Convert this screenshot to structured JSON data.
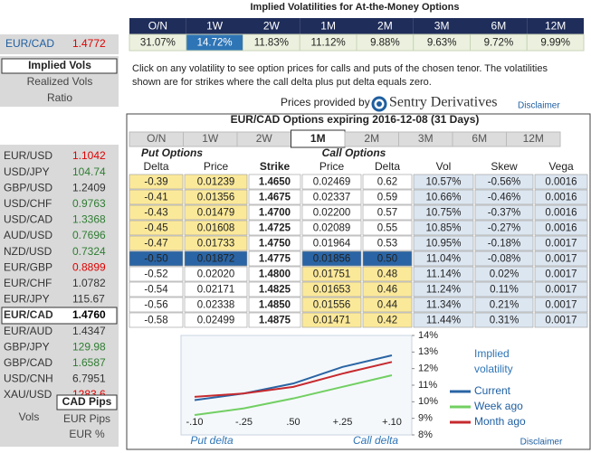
{
  "header": {
    "title": "Implied Volatilities for At-the-Money Options",
    "tenors": [
      "O/N",
      "1W",
      "2W",
      "1M",
      "2M",
      "3M",
      "6M",
      "12M"
    ],
    "vols": [
      "31.07%",
      "14.72%",
      "11.83%",
      "11.12%",
      "9.88%",
      "9.63%",
      "9.72%",
      "9.99%"
    ]
  },
  "left": {
    "pair": "EUR/CAD",
    "rate": "1.4772",
    "menu": [
      "Implied Vols",
      "Realized Vols",
      "Ratio"
    ],
    "quotes": [
      {
        "pair": "EUR/USD",
        "rate": "1.1042",
        "color": "#e00000"
      },
      {
        "pair": "USD/JPY",
        "rate": "104.74",
        "color": "#2e7d32"
      },
      {
        "pair": "GBP/USD",
        "rate": "1.2409",
        "color": "#333333"
      },
      {
        "pair": "USD/CHF",
        "rate": "0.9763",
        "color": "#2e7d32"
      },
      {
        "pair": "USD/CAD",
        "rate": "1.3368",
        "color": "#2e7d32"
      },
      {
        "pair": "AUD/USD",
        "rate": "0.7696",
        "color": "#2e7d32"
      },
      {
        "pair": "NZD/USD",
        "rate": "0.7324",
        "color": "#2e7d32"
      },
      {
        "pair": "EUR/GBP",
        "rate": "0.8899",
        "color": "#e00000"
      },
      {
        "pair": "EUR/CHF",
        "rate": "1.0782",
        "color": "#333333"
      },
      {
        "pair": "EUR/JPY",
        "rate": "115.67",
        "color": "#333333"
      },
      {
        "pair": "EUR/CAD",
        "rate": "1.4760",
        "color": "#000000"
      },
      {
        "pair": "EUR/AUD",
        "rate": "1.4347",
        "color": "#333333"
      },
      {
        "pair": "GBP/JPY",
        "rate": "129.98",
        "color": "#2e7d32"
      },
      {
        "pair": "GBP/CAD",
        "rate": "1.6587",
        "color": "#2e7d32"
      },
      {
        "pair": "USD/CNH",
        "rate": "6.7951",
        "color": "#333333"
      },
      {
        "pair": "XAU/USD",
        "rate": "1283.6",
        "color": "#e00000"
      }
    ],
    "cad_pips": "CAD Pips",
    "vols": "Vols",
    "eur_pips": "EUR Pips",
    "eur_pct": "EUR %"
  },
  "note": [
    "Click on any volatility to see option prices for calls and puts of the chosen tenor. The volatilities",
    "shown are for strikes where the call delta plus put delta equals zero."
  ],
  "provider": "Prices provided by",
  "brand": "Sentry Derivatives",
  "disclaimer": "Disclaimer",
  "options": {
    "title": "EUR/CAD Options expiring 2016-12-08 (31 Days)",
    "tabs": [
      "O/N",
      "1W",
      "2W",
      "1M",
      "2M",
      "3M",
      "6M",
      "12M"
    ],
    "put_group": "Put Options",
    "call_group": "Call Options",
    "columns": [
      "Delta",
      "Price",
      "Strike",
      "Price",
      "Delta",
      "Vol",
      "Skew",
      "Vega"
    ],
    "rows": [
      [
        "-0.39",
        "0.01239",
        "1.4650",
        "0.02469",
        "0.62",
        "10.57%",
        "-0.56%",
        "0.0016"
      ],
      [
        "-0.41",
        "0.01356",
        "1.4675",
        "0.02337",
        "0.59",
        "10.66%",
        "-0.46%",
        "0.0016"
      ],
      [
        "-0.43",
        "0.01479",
        "1.4700",
        "0.02200",
        "0.57",
        "10.75%",
        "-0.37%",
        "0.0016"
      ],
      [
        "-0.45",
        "0.01608",
        "1.4725",
        "0.02089",
        "0.55",
        "10.85%",
        "-0.27%",
        "0.0016"
      ],
      [
        "-0.47",
        "0.01733",
        "1.4750",
        "0.01964",
        "0.53",
        "10.95%",
        "-0.18%",
        "0.0017"
      ],
      [
        "-0.50",
        "0.01872",
        "1.4775",
        "0.01856",
        "0.50",
        "11.04%",
        "-0.08%",
        "0.0017"
      ],
      [
        "-0.52",
        "0.02020",
        "1.4800",
        "0.01751",
        "0.48",
        "11.14%",
        "0.02%",
        "0.0017"
      ],
      [
        "-0.54",
        "0.02171",
        "1.4825",
        "0.01653",
        "0.46",
        "11.24%",
        "0.11%",
        "0.0017"
      ],
      [
        "-0.56",
        "0.02338",
        "1.4850",
        "0.01556",
        "0.44",
        "11.34%",
        "0.21%",
        "0.0017"
      ],
      [
        "-0.58",
        "0.02499",
        "1.4875",
        "0.01471",
        "0.42",
        "11.44%",
        "0.31%",
        "0.0017"
      ]
    ],
    "disclaimer": "Disclaimer"
  },
  "chart_data": {
    "type": "line",
    "legend_title": [
      "Implied",
      "volatility"
    ],
    "x_label_left": "Put delta",
    "x_label_right": "Call delta",
    "categories": [
      "-.10",
      "-.25",
      ".50",
      "+.25",
      "+.10"
    ],
    "series": [
      {
        "name": "Current",
        "color": "#2a64a4",
        "values": [
          10.1,
          10.5,
          11.1,
          12.1,
          12.8
        ]
      },
      {
        "name": "Week ago",
        "color": "#72cf62",
        "values": [
          9.2,
          9.6,
          10.2,
          10.9,
          11.6
        ]
      },
      {
        "name": "Month ago",
        "color": "#c62a2f",
        "values": [
          10.3,
          10.5,
          10.9,
          11.7,
          12.4
        ]
      }
    ],
    "ylim": [
      8,
      14
    ],
    "yticks": [
      {
        "value": 8,
        "label": "8%"
      },
      {
        "value": 9,
        "label": "9%"
      },
      {
        "value": 10,
        "label": "10%"
      },
      {
        "value": 11,
        "label": "11%"
      },
      {
        "value": 12,
        "label": "12%"
      },
      {
        "value": 13,
        "label": "13%"
      },
      {
        "value": 14,
        "label": "14%"
      }
    ]
  }
}
